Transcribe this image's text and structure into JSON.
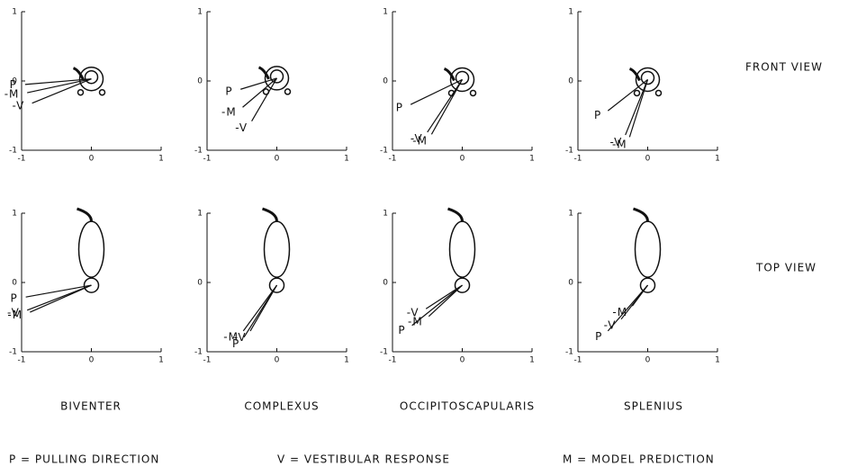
{
  "chart_data": [
    {
      "type": "vector",
      "xlim": [
        -1,
        1
      ],
      "ylim": [
        -1,
        1
      ],
      "xticks": [
        -1,
        0,
        1
      ],
      "yticks": [
        -1,
        0,
        1
      ],
      "origin": [
        0,
        0.03
      ],
      "vectors": [
        {
          "label": "P",
          "x": -0.95,
          "y": -0.05
        },
        {
          "label": "-M",
          "x": -0.92,
          "y": -0.17
        },
        {
          "label": "-V",
          "x": -0.85,
          "y": -0.32
        }
      ]
    },
    {
      "type": "vector",
      "xlim": [
        -1,
        1
      ],
      "ylim": [
        -1,
        1
      ],
      "xticks": [
        -1,
        0,
        1
      ],
      "yticks": [
        -1,
        0,
        1
      ],
      "origin": [
        0,
        0.04
      ],
      "vectors": [
        {
          "label": "P",
          "x": -0.52,
          "y": -0.12
        },
        {
          "label": "-M",
          "x": -0.49,
          "y": -0.38
        },
        {
          "label": "-V",
          "x": -0.36,
          "y": -0.58
        }
      ]
    },
    {
      "type": "vector",
      "xlim": [
        -1,
        1
      ],
      "ylim": [
        -1,
        1
      ],
      "xticks": [
        -1,
        0,
        1
      ],
      "yticks": [
        -1,
        0,
        1
      ],
      "origin": [
        0,
        0.02
      ],
      "vectors": [
        {
          "label": "P",
          "x": -0.74,
          "y": -0.34
        },
        {
          "label": "-V",
          "x": -0.5,
          "y": -0.74
        },
        {
          "label": "-M",
          "x": -0.44,
          "y": -0.77
        }
      ]
    },
    {
      "type": "vector",
      "xlim": [
        -1,
        1
      ],
      "ylim": [
        -1,
        1
      ],
      "xticks": [
        -1,
        0,
        1
      ],
      "yticks": [
        -1,
        0,
        1
      ],
      "origin": [
        0,
        0.02
      ],
      "vectors": [
        {
          "label": "P",
          "x": -0.57,
          "y": -0.43
        },
        {
          "label": "-V",
          "x": -0.32,
          "y": -0.78
        },
        {
          "label": "-M",
          "x": -0.26,
          "y": -0.81
        }
      ]
    },
    {
      "type": "vector",
      "xlim": [
        -1,
        1
      ],
      "ylim": [
        -1,
        1
      ],
      "xticks": [
        -1,
        0,
        1
      ],
      "yticks": [
        -1,
        0,
        1
      ],
      "origin": [
        0,
        -0.04
      ],
      "vectors": [
        {
          "label": "P",
          "x": -0.94,
          "y": -0.21
        },
        {
          "label": "-V",
          "x": -0.92,
          "y": -0.4
        },
        {
          "label": "-M",
          "x": -0.88,
          "y": -0.43
        }
      ]
    },
    {
      "type": "vector",
      "xlim": [
        -1,
        1
      ],
      "ylim": [
        -1,
        1
      ],
      "xticks": [
        -1,
        0,
        1
      ],
      "yticks": [
        -1,
        0,
        1
      ],
      "origin": [
        0,
        -0.04
      ],
      "vectors": [
        {
          "label": "-M",
          "x": -0.48,
          "y": -0.7
        },
        {
          "label": "-V",
          "x": -0.38,
          "y": -0.7
        },
        {
          "label": "P",
          "x": -0.47,
          "y": -0.79
        }
      ]
    },
    {
      "type": "vector",
      "xlim": [
        -1,
        1
      ],
      "ylim": [
        -1,
        1
      ],
      "xticks": [
        -1,
        0,
        1
      ],
      "yticks": [
        -1,
        0,
        1
      ],
      "origin": [
        0,
        -0.04
      ],
      "vectors": [
        {
          "label": "-V",
          "x": -0.52,
          "y": -0.38
        },
        {
          "label": "-M",
          "x": -0.48,
          "y": -0.49
        },
        {
          "label": "P",
          "x": -0.72,
          "y": -0.62
        }
      ]
    },
    {
      "type": "vector",
      "xlim": [
        -1,
        1
      ],
      "ylim": [
        -1,
        1
      ],
      "xticks": [
        -1,
        0,
        1
      ],
      "yticks": [
        -1,
        0,
        1
      ],
      "origin": [
        0,
        -0.04
      ],
      "vectors": [
        {
          "label": "-M",
          "x": -0.22,
          "y": -0.34
        },
        {
          "label": "-V",
          "x": -0.38,
          "y": -0.53
        },
        {
          "label": "P",
          "x": -0.57,
          "y": -0.7
        }
      ]
    }
  ],
  "columns": [
    "BIVENTER",
    "COMPLEXUS",
    "OCCIPITOSCAPULARIS",
    "SPLENIUS"
  ],
  "rows": [
    "FRONT VIEW",
    "TOP VIEW"
  ],
  "legend": [
    "P = PULLING DIRECTION",
    "V = VESTIBULAR RESPONSE",
    "M = MODEL PREDICTION"
  ]
}
